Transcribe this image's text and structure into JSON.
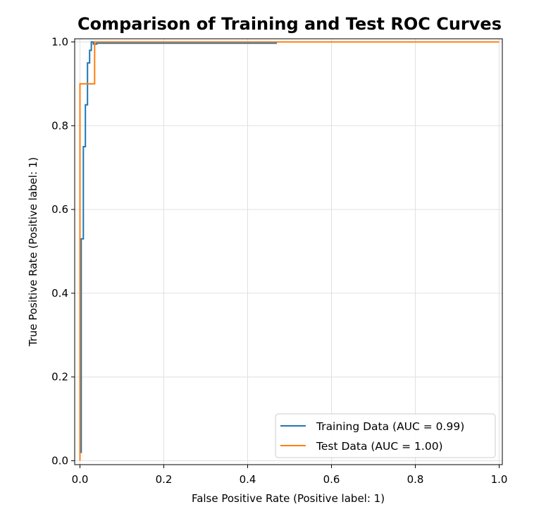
{
  "chart_data": {
    "type": "line",
    "title": "Comparison of Training and Test ROC Curves",
    "xlabel": "False Positive Rate (Positive label: 1)",
    "ylabel": "True Positive Rate (Positive label: 1)",
    "xlim": [
      0.0,
      1.0
    ],
    "ylim": [
      0.0,
      1.0
    ],
    "xticks": [
      "0.0",
      "0.2",
      "0.4",
      "0.6",
      "0.8",
      "1.0"
    ],
    "yticks": [
      "0.0",
      "0.2",
      "0.4",
      "0.6",
      "0.8",
      "1.0"
    ],
    "grid": true,
    "legend_position": "lower-right",
    "series": [
      {
        "name": "Training Data (AUC = 0.99)",
        "color": "#1f77b4",
        "x": [
          0.0,
          0.0,
          0.003,
          0.003,
          0.008,
          0.008,
          0.013,
          0.013,
          0.018,
          0.018,
          0.023,
          0.023,
          0.027,
          0.027,
          0.032,
          0.032,
          0.04,
          0.04,
          0.47
        ],
        "y": [
          0.0,
          0.02,
          0.02,
          0.53,
          0.53,
          0.75,
          0.75,
          0.85,
          0.85,
          0.95,
          0.95,
          0.98,
          0.98,
          1.0,
          1.0,
          0.995,
          0.995,
          0.997,
          0.997
        ]
      },
      {
        "name": "Test Data (AUC = 1.00)",
        "color": "#ff7f0e",
        "x": [
          0.0,
          0.0,
          0.0,
          0.035,
          0.035,
          1.0
        ],
        "y": [
          0.0,
          0.9,
          0.9,
          0.9,
          1.0,
          1.0
        ]
      }
    ]
  }
}
